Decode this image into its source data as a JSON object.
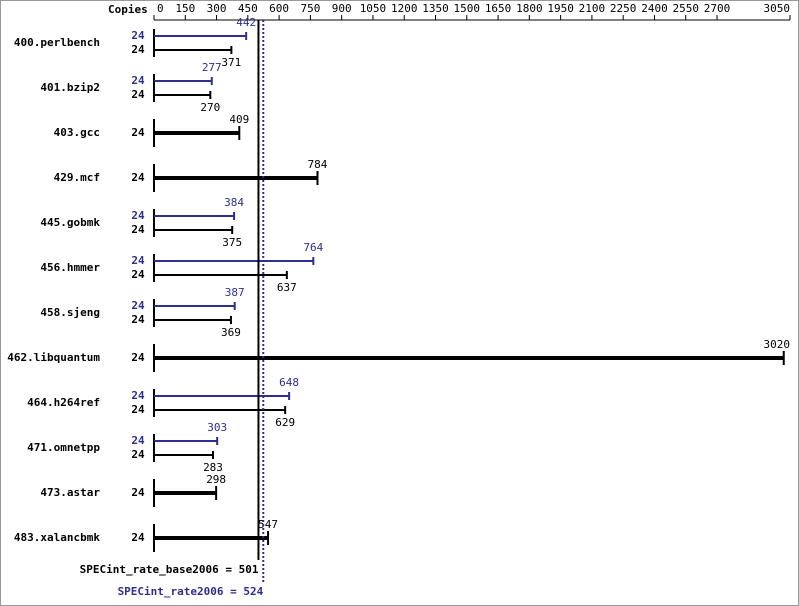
{
  "chart_data": {
    "type": "spec_bar",
    "copies_header": "Copies",
    "xlim": [
      0,
      3050
    ],
    "xticks": [
      0,
      150,
      300,
      450,
      600,
      750,
      900,
      1050,
      1200,
      1350,
      1500,
      1650,
      1800,
      1950,
      2100,
      2250,
      2400,
      2550,
      2700,
      3050
    ],
    "base_color": "#000000",
    "peak_color": "#2e2e8f",
    "rows": [
      {
        "name": "400.perlbench",
        "peak_copies": "24",
        "peak": 442,
        "base_copies": "24",
        "base": 371
      },
      {
        "name": "401.bzip2",
        "peak_copies": "24",
        "peak": 277,
        "base_copies": "24",
        "base": 270
      },
      {
        "name": "403.gcc",
        "base_copies": "24",
        "base": 409
      },
      {
        "name": "429.mcf",
        "base_copies": "24",
        "base": 784
      },
      {
        "name": "445.gobmk",
        "peak_copies": "24",
        "peak": 384,
        "base_copies": "24",
        "base": 375
      },
      {
        "name": "456.hmmer",
        "peak_copies": "24",
        "peak": 764,
        "base_copies": "24",
        "base": 637
      },
      {
        "name": "458.sjeng",
        "peak_copies": "24",
        "peak": 387,
        "base_copies": "24",
        "base": 369
      },
      {
        "name": "462.libquantum",
        "base_copies": "24",
        "base": 3020
      },
      {
        "name": "464.h264ref",
        "peak_copies": "24",
        "peak": 648,
        "base_copies": "24",
        "base": 629
      },
      {
        "name": "471.omnetpp",
        "peak_copies": "24",
        "peak": 303,
        "base_copies": "24",
        "base": 283
      },
      {
        "name": "473.astar",
        "base_copies": "24",
        "base": 298
      },
      {
        "name": "483.xalancbmk",
        "base_copies": "24",
        "base": 547
      }
    ],
    "base_label": "SPECint_rate_base2006 = 501",
    "base_value": 501,
    "peak_label": "SPECint_rate2006 = 524",
    "peak_value": 524
  }
}
